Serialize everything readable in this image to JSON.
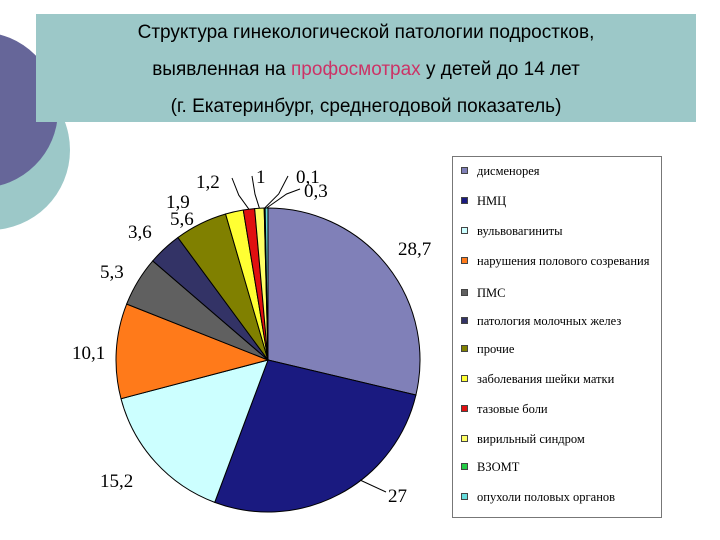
{
  "title": {
    "line1": "Структура гинекологической патологии подростков,",
    "line2_before": "выявленная на ",
    "line2_highlight": "профосмотрах",
    "line2_after": "  у детей до 14 лет",
    "line3": "(г. Екатеринбург, среднегодовой показатель)"
  },
  "colors": {
    "title_bg": "#9cc8c8",
    "highlight": "#cc3366",
    "deco_dark": "#666699",
    "deco_light": "#9cc8c8"
  },
  "chart_data": {
    "type": "pie",
    "labels": [
      "дисменорея",
      "НМЦ",
      "вульвовагиниты",
      "нарушения полового созревания",
      "ПМС",
      "патология молочных желез",
      "прочие",
      "заболевания шейки матки",
      "тазовые боли",
      "вирильный синдром",
      "ВЗОМТ",
      "опухоли половых органов"
    ],
    "values": [
      28.7,
      27,
      15.2,
      10.1,
      5.3,
      3.6,
      5.6,
      1.9,
      1.2,
      1,
      0.1,
      0.3
    ],
    "value_labels": [
      "28,7",
      "27",
      "15,2",
      "10,1",
      "5,3",
      "3,6",
      "5,6",
      "1,9",
      "1,2",
      "1",
      "0,1",
      "0,3"
    ],
    "colors": [
      "#8080b8",
      "#1a1a80",
      "#ccffff",
      "#ff7a1a",
      "#606060",
      "#333366",
      "#808000",
      "#ffff33",
      "#e01010",
      "#ffff66",
      "#22cc44",
      "#66dddd"
    ],
    "legend_position": "right"
  }
}
